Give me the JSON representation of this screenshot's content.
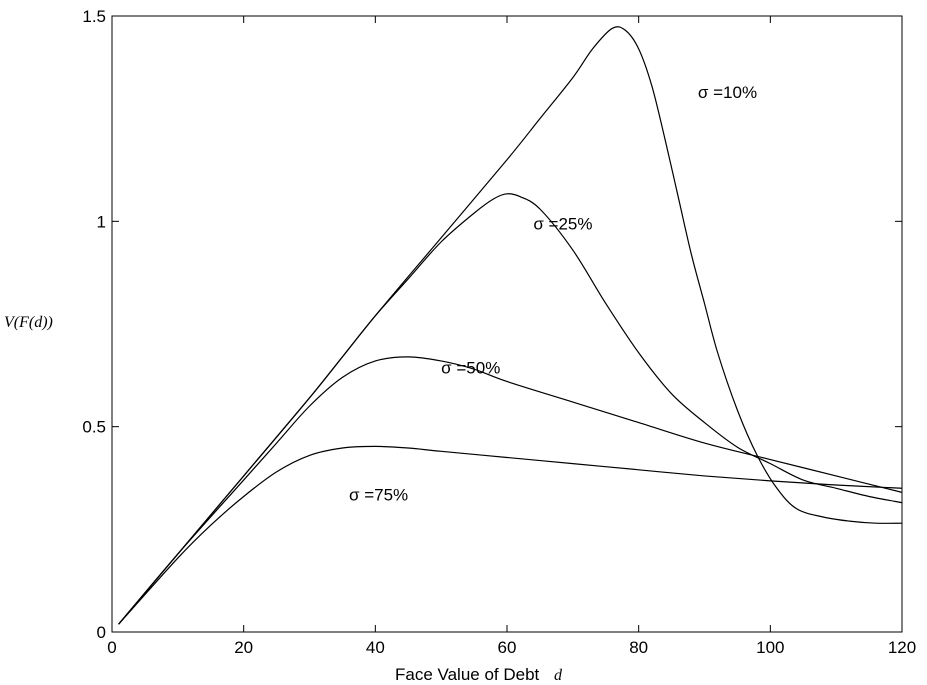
{
  "chart_data": {
    "type": "line",
    "title": "",
    "xlabel": "Face Value of Debt",
    "xlabel_var": "d",
    "ylabel": "V(F(d))",
    "xlim": [
      0,
      120
    ],
    "ylim": [
      0,
      1.5
    ],
    "xticks": [
      "0",
      "20",
      "40",
      "60",
      "80",
      "100",
      "120"
    ],
    "yticks": [
      "0",
      "0.5",
      "1",
      "1.5"
    ],
    "grid": false,
    "series": [
      {
        "name": "σ =10%",
        "x": [
          1,
          10,
          20,
          30,
          40,
          50,
          60,
          65,
          70,
          73,
          76,
          78,
          80,
          82,
          84,
          86,
          88,
          90,
          92,
          95,
          98,
          101,
          104,
          108,
          112,
          116,
          120
        ],
        "y": [
          0.019,
          0.19,
          0.38,
          0.57,
          0.77,
          0.96,
          1.15,
          1.25,
          1.35,
          1.42,
          1.47,
          1.465,
          1.42,
          1.33,
          1.2,
          1.06,
          0.92,
          0.8,
          0.68,
          0.54,
          0.43,
          0.35,
          0.3,
          0.28,
          0.27,
          0.265,
          0.265
        ]
      },
      {
        "name": "σ =25%",
        "x": [
          1,
          10,
          20,
          30,
          35,
          40,
          45,
          50,
          55,
          58,
          60,
          62,
          65,
          70,
          75,
          80,
          85,
          90,
          95,
          100,
          105,
          110,
          115,
          120
        ],
        "y": [
          0.019,
          0.19,
          0.38,
          0.57,
          0.67,
          0.77,
          0.86,
          0.95,
          1.02,
          1.055,
          1.067,
          1.06,
          1.03,
          0.93,
          0.8,
          0.68,
          0.58,
          0.51,
          0.45,
          0.41,
          0.37,
          0.35,
          0.33,
          0.315
        ]
      },
      {
        "name": "σ =50%",
        "x": [
          1,
          10,
          20,
          25,
          30,
          35,
          40,
          45,
          50,
          55,
          60,
          70,
          80,
          90,
          100,
          110,
          120
        ],
        "y": [
          0.019,
          0.19,
          0.37,
          0.46,
          0.55,
          0.62,
          0.66,
          0.67,
          0.66,
          0.64,
          0.61,
          0.56,
          0.51,
          0.46,
          0.42,
          0.38,
          0.34
        ]
      },
      {
        "name": "σ =75%",
        "x": [
          1,
          10,
          15,
          20,
          25,
          30,
          35,
          40,
          45,
          50,
          60,
          70,
          80,
          90,
          100,
          110,
          120
        ],
        "y": [
          0.019,
          0.18,
          0.26,
          0.33,
          0.39,
          0.43,
          0.448,
          0.452,
          0.448,
          0.44,
          0.425,
          0.41,
          0.395,
          0.38,
          0.368,
          0.358,
          0.35
        ]
      }
    ],
    "annotations": [
      {
        "text": "σ =10%",
        "x": 89,
        "y": 1.3
      },
      {
        "text": "σ =25%",
        "x": 64,
        "y": 0.98
      },
      {
        "text": "σ =50%",
        "x": 50,
        "y": 0.63
      },
      {
        "text": "σ =75%",
        "x": 36,
        "y": 0.32
      }
    ]
  }
}
